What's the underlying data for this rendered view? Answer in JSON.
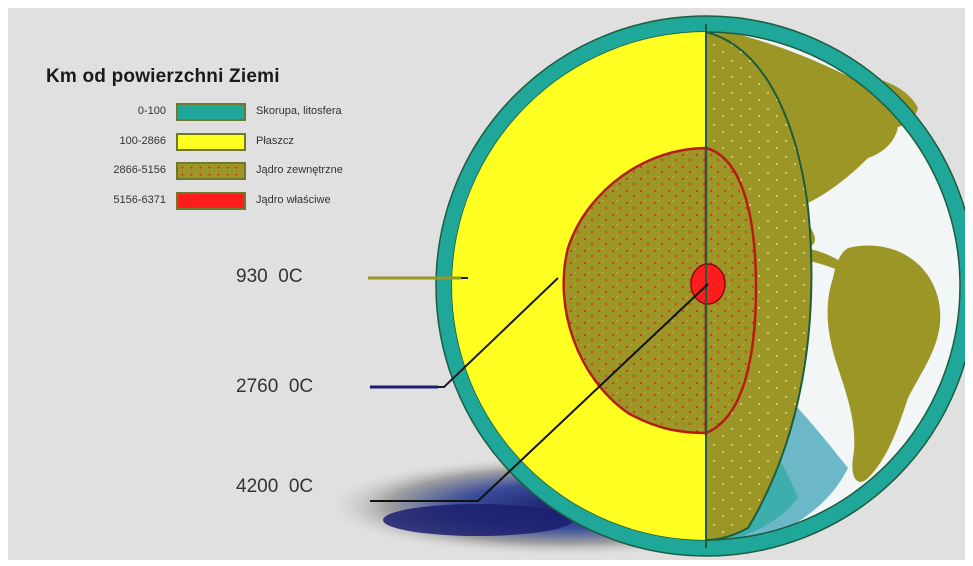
{
  "legend": {
    "title": "Km od powierzchni Ziemi",
    "items": [
      {
        "range": "0-100",
        "label": "Skorupa, litosfera",
        "color": "#1fa79a"
      },
      {
        "range": "100-2866",
        "label": "Płaszcz",
        "color": "#ffff22"
      },
      {
        "range": "2866-5156",
        "label": "Jądro zewnętrzne",
        "color": "#9c9626"
      },
      {
        "range": "5156-6371",
        "label": "Jądro właściwe",
        "color": "#ff1c1c"
      }
    ]
  },
  "temperatures": [
    {
      "label": "930  0C",
      "line_color": "#9c9626"
    },
    {
      "label": "2760  0C",
      "line_color": "#1b1f6e"
    },
    {
      "label": "4200  0C",
      "line_color": "#111111"
    }
  ],
  "colors": {
    "crust": "#1fa79a",
    "mantle": "#ffff22",
    "outer_core": "#9c9626",
    "inner_core": "#ff1c1c",
    "ocean": "#f2f6f6",
    "land": "#9c9626",
    "background": "#e0e0e0"
  }
}
